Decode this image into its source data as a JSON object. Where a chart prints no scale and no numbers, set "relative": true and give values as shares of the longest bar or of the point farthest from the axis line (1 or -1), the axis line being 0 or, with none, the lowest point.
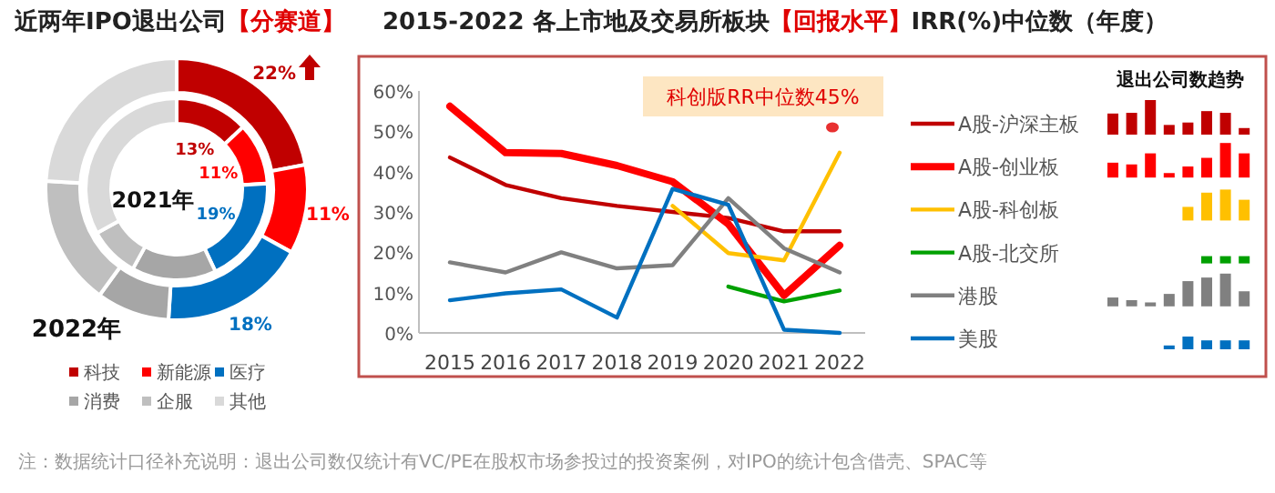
{
  "chart_data": [
    {
      "type": "donut",
      "title": "近两年IPO退出公司【分赛道】",
      "categories": [
        "科技",
        "新能源",
        "医疗",
        "消费",
        "企服",
        "其他"
      ],
      "colors": [
        "#c00000",
        "#ff0000",
        "#0070c0",
        "#a6a6a6",
        "#bfbfbf",
        "#d9d9d9"
      ],
      "legend": "bottom",
      "series": [
        {
          "name": "2022年",
          "values": [
            22,
            11,
            18,
            9,
            16,
            24
          ],
          "value_labels": [
            "22%",
            "11%",
            "18%",
            null,
            null,
            null
          ]
        },
        {
          "name": "2021年",
          "values": [
            13,
            11,
            19,
            15,
            9,
            33
          ],
          "value_labels": [
            "13%",
            "11%",
            "19%",
            null,
            null,
            null
          ]
        }
      ]
    },
    {
      "type": "line",
      "title": "2015-2022 各上市地及交易所板块【回报水平】IRR(%)中位数（年度）",
      "categories": [
        "2015",
        "2016",
        "2017",
        "2018",
        "2019",
        "2020",
        "2021",
        "2022"
      ],
      "ylim": [
        0,
        60
      ],
      "yticks": [
        {
          "value": 0,
          "label": "0%"
        },
        {
          "value": 10,
          "label": "10%"
        },
        {
          "value": 20,
          "label": "20%"
        },
        {
          "value": 30,
          "label": "30%"
        },
        {
          "value": 40,
          "label": "40%"
        },
        {
          "value": 50,
          "label": "50%"
        },
        {
          "value": 60,
          "label": "60%"
        }
      ],
      "legend": "right",
      "grid": false,
      "annotations": [
        "科创版RR中位数45%",
        "注：数据统计口径补充说明：退出公司数仅统计有VC/PE在股权市场参投过的投资案例，对IPO的统计包含借壳、SPAC等"
      ],
      "series": [
        {
          "name": "A股-沪深主板",
          "color": "#c00000",
          "values": [
            43.5,
            36.7,
            33.4,
            31.5,
            30,
            28.5,
            25.2,
            25.2
          ]
        },
        {
          "name": "A股-创业板",
          "color": "#ff0000",
          "values": [
            56.2,
            44.7,
            44.5,
            41.5,
            37.5,
            27,
            9.3,
            21.7
          ]
        },
        {
          "name": "A股-科创板",
          "color": "#ffc000",
          "values": [
            null,
            null,
            null,
            null,
            31.5,
            19.8,
            18,
            44.7
          ]
        },
        {
          "name": "A股-北交所",
          "color": "#00a000",
          "values": [
            null,
            null,
            null,
            null,
            null,
            11.5,
            7.8,
            10.5
          ]
        },
        {
          "name": "港股",
          "color": "#808080",
          "values": [
            17.5,
            15,
            20,
            16,
            16.8,
            33.4,
            21,
            15
          ]
        },
        {
          "name": "美股",
          "color": "#0070c0",
          "values": [
            8.1,
            9.8,
            10.8,
            3.8,
            35.7,
            31.8,
            0.8,
            0
          ]
        }
      ]
    },
    {
      "type": "bar",
      "title": "退出公司数趋势",
      "relative": true,
      "categories": [
        null,
        null,
        null,
        null,
        null,
        null,
        null,
        null
      ],
      "color": "#c00000",
      "values": [
        0.61,
        0.63,
        1,
        0.28,
        0.35,
        0.68,
        0.63,
        0.19
      ]
    },
    {
      "type": "bar",
      "relative": true,
      "categories": [
        null,
        null,
        null,
        null,
        null,
        null,
        null,
        null
      ],
      "color": "#ff0000",
      "values": [
        0.43,
        0.38,
        0.7,
        0.13,
        0.32,
        0.57,
        1,
        0.7
      ]
    },
    {
      "type": "bar",
      "relative": true,
      "categories": [
        null,
        null,
        null,
        null
      ],
      "color": "#ffc000",
      "values": [
        0.44,
        0.9,
        1,
        0.67
      ]
    },
    {
      "type": "bar",
      "relative": true,
      "categories": [
        null,
        null,
        null
      ],
      "color": "#00a000",
      "values": [
        1,
        1,
        1
      ]
    },
    {
      "type": "bar",
      "relative": true,
      "categories": [
        null,
        null,
        null,
        null,
        null,
        null,
        null,
        null
      ],
      "color": "#808080",
      "values": [
        0.27,
        0.19,
        0.12,
        0.38,
        0.77,
        0.88,
        1,
        0.46
      ]
    },
    {
      "type": "bar",
      "relative": true,
      "categories": [
        null,
        null,
        null,
        null,
        null
      ],
      "color": "#0070c0",
      "values": [
        0.3,
        1,
        0.7,
        0.7,
        0.7
      ]
    }
  ]
}
